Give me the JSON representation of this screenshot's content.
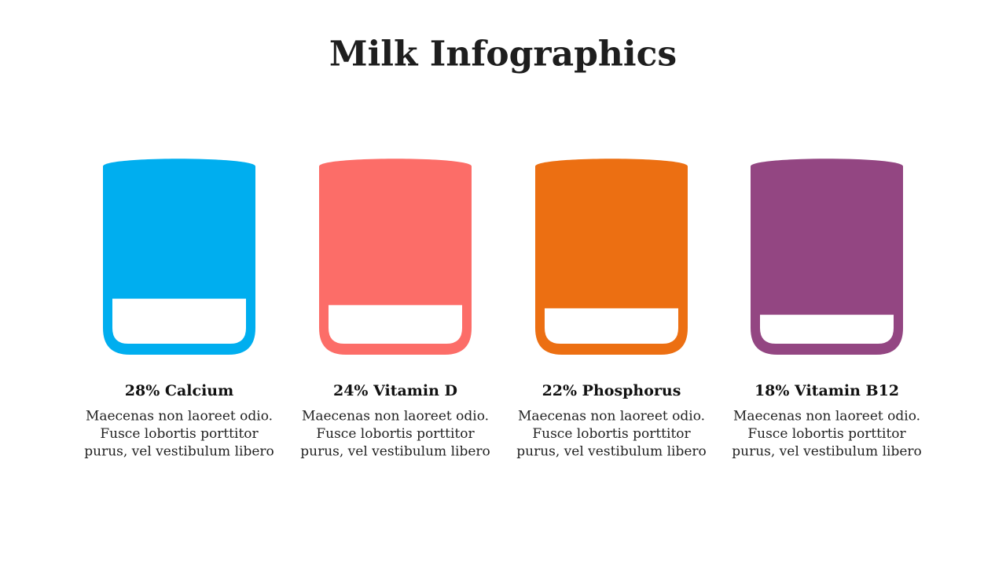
{
  "title": "Milk Infographics",
  "items": [
    {
      "label": "28% Calcium",
      "value": 28,
      "color": "#00aeef",
      "text": [
        "Maecenas non laoreet odio.",
        "Fusce lobortis porttitor",
        "purus, vel vestibulum libero"
      ]
    },
    {
      "label": "24% Vitamin D",
      "value": 24,
      "color": "#fc6d68",
      "text": [
        "Maecenas non laoreet odio.",
        "Fusce lobortis porttitor",
        "purus, vel vestibulum libero"
      ]
    },
    {
      "label": "22% Phosphorus",
      "value": 22,
      "color": "#ec6f12",
      "text": [
        "Maecenas non laoreet odio.",
        "Fusce lobortis porttitor",
        "purus, vel vestibulum libero"
      ]
    },
    {
      "label": "18% Vitamin B12",
      "value": 18,
      "color": "#934682",
      "text": [
        "Maecenas non laoreet odio.",
        "Fusce lobortis porttitor",
        "purus, vel vestibulum libero"
      ]
    }
  ]
}
